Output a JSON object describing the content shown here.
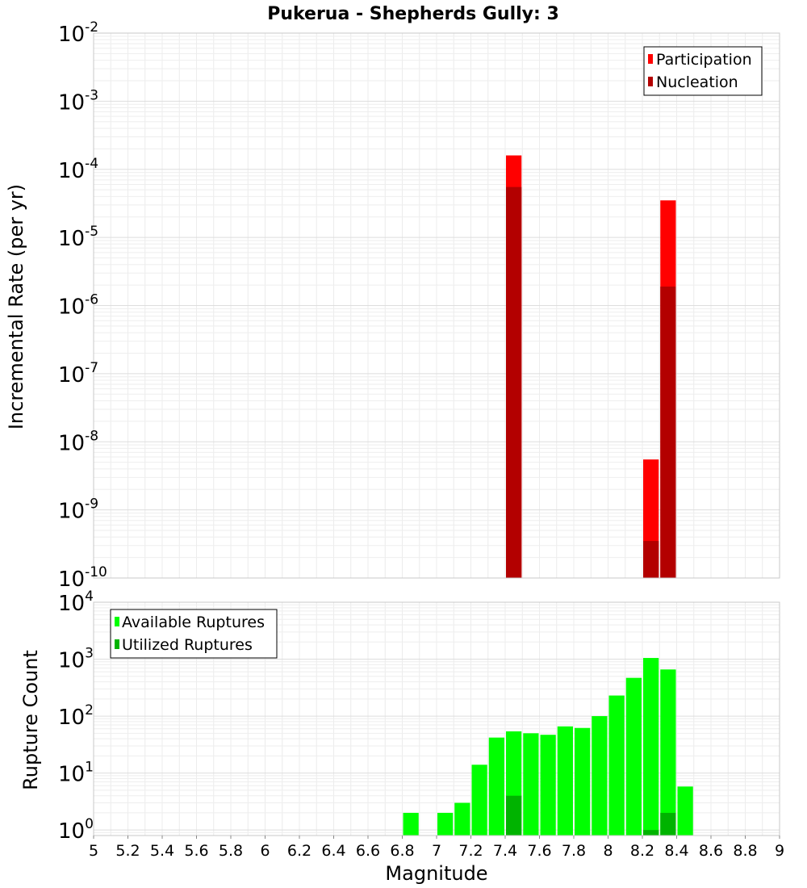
{
  "chart_data": {
    "title": "Pukerua - Shepherds Gully: 3",
    "xlabel": "Magnitude",
    "xlim": [
      5,
      9
    ],
    "xticks": [
      "5",
      "5.2",
      "5.4",
      "5.6",
      "5.8",
      "6",
      "6.2",
      "6.4",
      "6.6",
      "6.8",
      "7",
      "7.2",
      "7.4",
      "7.6",
      "7.8",
      "8",
      "8.2",
      "8.4",
      "8.6",
      "8.8",
      "9"
    ],
    "panels": [
      {
        "type": "bar",
        "ylabel": "Incremental Rate (per yr)",
        "yscale": "log",
        "ylim": [
          1e-10,
          0.01
        ],
        "yticks": [
          {
            "base": "10",
            "exp": "-10"
          },
          {
            "base": "10",
            "exp": "-9"
          },
          {
            "base": "10",
            "exp": "-8"
          },
          {
            "base": "10",
            "exp": "-7"
          },
          {
            "base": "10",
            "exp": "-6"
          },
          {
            "base": "10",
            "exp": "-5"
          },
          {
            "base": "10",
            "exp": "-4"
          },
          {
            "base": "10",
            "exp": "-3"
          },
          {
            "base": "10",
            "exp": "-2"
          }
        ],
        "grid": true,
        "legend_position": "top-right",
        "series": [
          {
            "name": "Participation",
            "color": "#ff0000",
            "points": [
              {
                "x": 7.45,
                "y": 0.00016
              },
              {
                "x": 8.25,
                "y": 5.5e-09
              },
              {
                "x": 8.35,
                "y": 3.5e-05
              }
            ]
          },
          {
            "name": "Nucleation",
            "color": "#b30000",
            "points": [
              {
                "x": 7.45,
                "y": 5.5e-05
              },
              {
                "x": 8.25,
                "y": 3.5e-10
              },
              {
                "x": 8.35,
                "y": 1.9e-06
              }
            ]
          }
        ]
      },
      {
        "type": "bar",
        "ylabel": "Rupture Count",
        "yscale": "log",
        "ylim": [
          0.8,
          10000.0
        ],
        "yticks": [
          {
            "base": "10",
            "exp": "0",
            "value": 1
          },
          {
            "base": "10",
            "exp": "1",
            "value": 10
          },
          {
            "base": "10",
            "exp": "2",
            "value": 100
          },
          {
            "base": "10",
            "exp": "3",
            "value": 1000
          },
          {
            "base": "10",
            "exp": "4",
            "value": 10000
          }
        ],
        "grid": true,
        "legend_position": "top-left",
        "series": [
          {
            "name": "Available Ruptures",
            "color": "#00ff00",
            "points": [
              {
                "x": 6.85,
                "y": 2
              },
              {
                "x": 7.05,
                "y": 2
              },
              {
                "x": 7.15,
                "y": 3
              },
              {
                "x": 7.25,
                "y": 14
              },
              {
                "x": 7.35,
                "y": 42
              },
              {
                "x": 7.45,
                "y": 54
              },
              {
                "x": 7.55,
                "y": 50
              },
              {
                "x": 7.65,
                "y": 47
              },
              {
                "x": 7.75,
                "y": 66
              },
              {
                "x": 7.85,
                "y": 62
              },
              {
                "x": 7.95,
                "y": 100
              },
              {
                "x": 8.05,
                "y": 230
              },
              {
                "x": 8.15,
                "y": 470
              },
              {
                "x": 8.25,
                "y": 1050
              },
              {
                "x": 8.35,
                "y": 660
              },
              {
                "x": 8.45,
                "y": 5.8
              }
            ]
          },
          {
            "name": "Utilized Ruptures",
            "color": "#00b300",
            "points": [
              {
                "x": 7.45,
                "y": 4
              },
              {
                "x": 8.25,
                "y": 1
              },
              {
                "x": 8.35,
                "y": 2
              }
            ]
          }
        ]
      }
    ]
  }
}
